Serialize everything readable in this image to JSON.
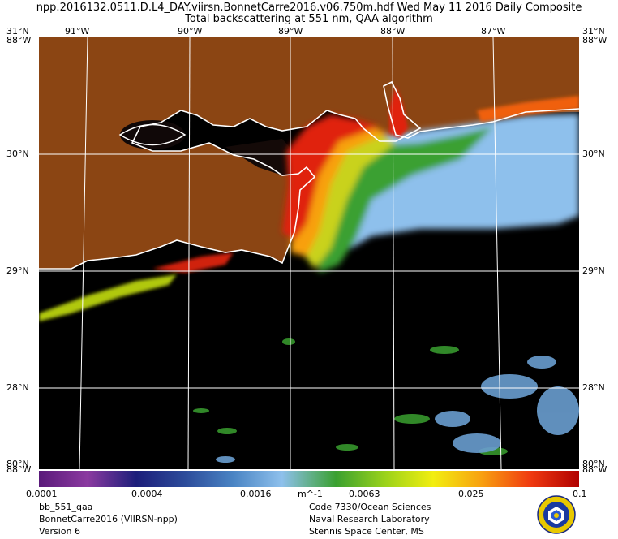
{
  "header": {
    "line1": "npp.2016132.0511.D.L4_DAY.viirsn.BonnetCarre2016.v06.750m.hdf  Wed May 11 2016 Daily Composite",
    "line2": "Total backscattering at 551 nm, QAA algorithm"
  },
  "axes": {
    "lon_top": [
      "91°W",
      "90°W",
      "89°W",
      "88°W",
      "87°W"
    ],
    "lat_left": [
      "31°N",
      "30°N",
      "29°N",
      "28°N"
    ],
    "lat_right": [
      "31°N",
      "30°N",
      "29°N",
      "28°N"
    ],
    "corner_top_left": "88°W",
    "corner_top_right": "88°W",
    "corner_bottom_left": "88°W",
    "corner_bottom_right": "88°W",
    "corner_bottom_left_under": "80°N",
    "corner_bottom_right_under": "80°N"
  },
  "colorbar": {
    "ticks": [
      "0.0001",
      "0.0004",
      "0.0016",
      "0.0063",
      "0.025",
      "0.1"
    ],
    "unit": "m^-1",
    "colors": [
      "#5a1a7a",
      "#8b3aa0",
      "#1c1e7a",
      "#2c4b9a",
      "#4a84c4",
      "#8ec0ec",
      "#3aa030",
      "#9ad21a",
      "#f2ee10",
      "#f8a010",
      "#f03a10",
      "#b00000"
    ]
  },
  "footer": {
    "left": [
      "bb_551_qaa",
      "BonnetCarre2016 (VIIRSN-npp)",
      "Version 6"
    ],
    "right": [
      "Code 7330/Ocean Sciences",
      "Naval Research Laboratory",
      "Stennis Space Center, MS"
    ]
  },
  "colors": {
    "land": "#8b4513",
    "water_nodata": "#000000",
    "grid": "#ffffff"
  },
  "logo": {
    "icon": "nrl-seal-icon"
  }
}
